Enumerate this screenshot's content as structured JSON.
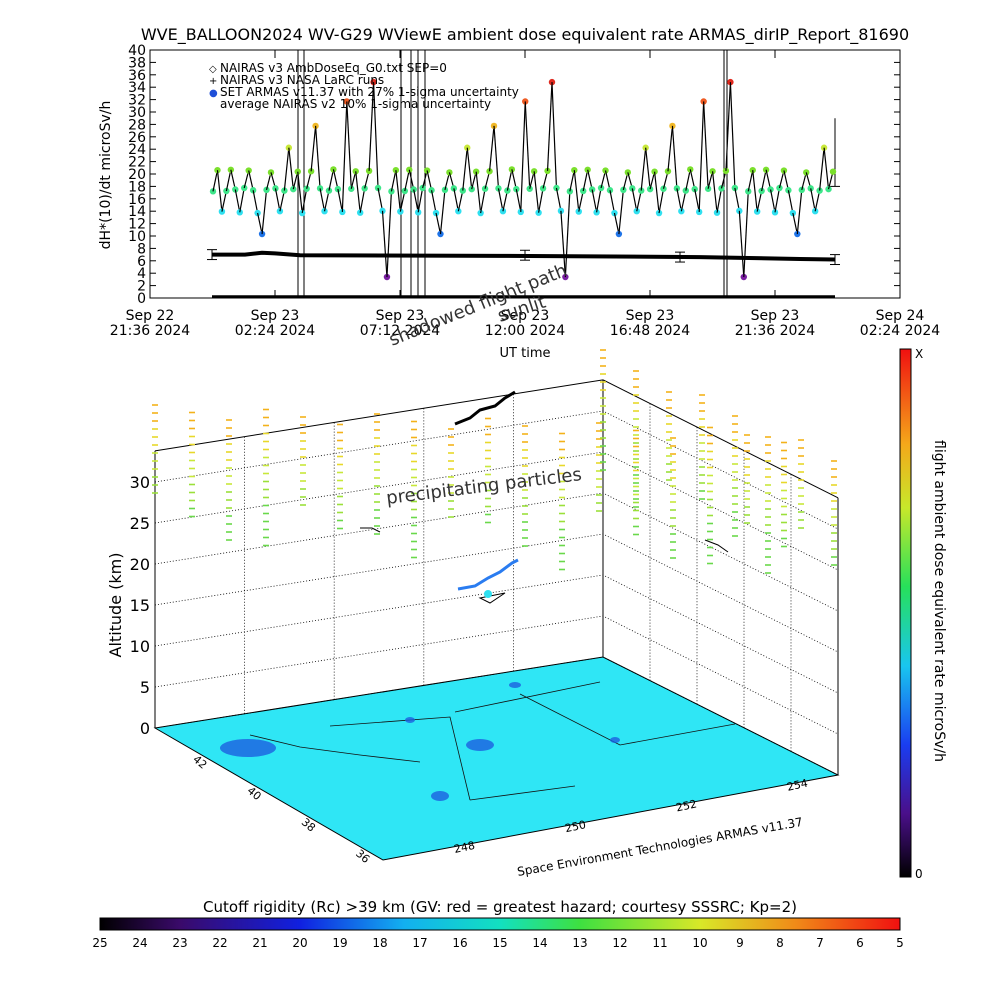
{
  "title": "WVE_BALLOON2024 WV-G29 WViewE ambient dose equivalent rate ARMAS_dirIP_Report_81690",
  "timeseries": {
    "ylabel": "dH*(10)/dt microSv/h",
    "xlabel": "UT time",
    "yticks": [
      "0",
      "2",
      "4",
      "6",
      "8",
      "10",
      "12",
      "14",
      "16",
      "18",
      "20",
      "22",
      "24",
      "26",
      "28",
      "30",
      "32",
      "34",
      "36",
      "38",
      "40"
    ],
    "xticks": [
      {
        "line1": "Sep 22",
        "line2": "21:36 2024"
      },
      {
        "line1": "Sep 23",
        "line2": "02:24 2024"
      },
      {
        "line1": "Sep 23",
        "line2": "07:12 2024"
      },
      {
        "line1": "Sep 23",
        "line2": "12:00 2024"
      },
      {
        "line1": "Sep 23",
        "line2": "16:48 2024"
      },
      {
        "line1": "Sep 23",
        "line2": "21:36 2024"
      },
      {
        "line1": "Sep 24",
        "line2": "02:24 2024"
      }
    ],
    "legend": [
      {
        "symbol": "◇",
        "label": "NAIRAS v3 AmbDoseEq_G0.txt SEP=0",
        "color": "#000000"
      },
      {
        "symbol": "+",
        "label": "NAIRAS v3 NASA LaRC runs",
        "color": "#000000"
      },
      {
        "symbol": "●",
        "label": "SET ARMAS v11.37 with 27% 1-sigma uncertainty",
        "color": "#1f4fd8"
      },
      {
        "symbol": "",
        "label": "average NAIRAS v2 10% 1-sigma uncertainty",
        "color": "#000000"
      }
    ],
    "overlay_labels": [
      "shadowed flight path",
      "sunlit"
    ]
  },
  "chart_data": [
    {
      "type": "scatter",
      "title": "WVE_BALLOON2024 WV-G29 WViewE ambient dose equivalent rate ARMAS_dirIP_Report_81690",
      "xlabel": "UT time",
      "ylabel": "dH*(10)/dt microSv/h",
      "ylim": [
        0,
        40
      ],
      "xlim": [
        "2024-09-22 21:36",
        "2024-09-24 02:24"
      ],
      "series": [
        {
          "name": "SET ARMAS v11.37 with 27% 1-sigma uncertainty",
          "levels": [
            3.5,
            10.2,
            14,
            17.5,
            20.5,
            24,
            28,
            32,
            35
          ],
          "pattern": "periodic cycling between levels"
        },
        {
          "name": "average NAIRAS v2 10% 1-sigma uncertainty",
          "x": [
            "2024-09-23 02:00",
            "2024-09-24 00:30"
          ],
          "values": [
            7.0,
            6.2
          ]
        },
        {
          "name": "NAIRAS v3 AmbDoseEq_G0.txt SEP=0",
          "values": [
            0
          ]
        }
      ]
    },
    {
      "type": "scatter3d",
      "zlabel": "Altitude (km)",
      "zticks": [
        "0",
        "5",
        "10",
        "15",
        "20",
        "25",
        "30"
      ],
      "lat_ticks": [
        "42",
        "40",
        "38",
        "36"
      ],
      "lon_ticks": [
        "248",
        "250",
        "252",
        "254"
      ],
      "colorbar_label": "flight ambient dose equivalent rate microSv/h",
      "colorbar_range": [
        "0",
        "X"
      ],
      "annotation": "precipitating particles",
      "credit": "Space Environment Technologies ARMAS v11.37"
    }
  ],
  "rigidity": {
    "title": "Cutoff rigidity (Rc) >39 km (GV: red = greatest hazard; courtesy SSSRC; Kp=2)",
    "ticks": [
      "25",
      "24",
      "23",
      "22",
      "21",
      "20",
      "19",
      "18",
      "17",
      "16",
      "15",
      "14",
      "13",
      "12",
      "11",
      "10",
      "9",
      "8",
      "7",
      "6",
      "5"
    ]
  },
  "colors": {
    "ground": "#2fe6f5",
    "level_colors": [
      "#7a1fa2",
      "#1f74e8",
      "#2fe0f0",
      "#3ee68a",
      "#7be02c",
      "#c8e83a",
      "#f0b828",
      "#ee5a22",
      "#e02a1f"
    ]
  }
}
